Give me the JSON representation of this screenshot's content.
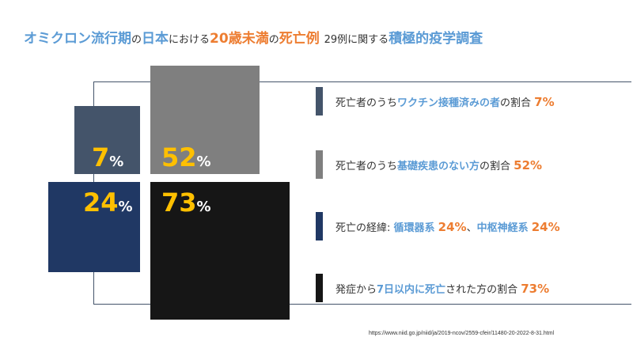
{
  "title": {
    "part1": "オミクロン流行期",
    "part2": "の",
    "part3": "日本",
    "part4": "における",
    "part5": "20歳未満",
    "part6": "の",
    "part7": "死亡例",
    "part8": "29例に関する",
    "part9": "積極的疫学調査"
  },
  "colors": {
    "accent_blue": "#5b9bd5",
    "accent_orange": "#ed7d31",
    "pct_yellow": "#ffc000",
    "square_vaccinated": "#44546a",
    "square_no_underlying": "#7f7f7f",
    "square_course": "#203864",
    "square_within7days": "#161616"
  },
  "squares": [
    {
      "value": "7",
      "unit": "%"
    },
    {
      "value": "52",
      "unit": "%"
    },
    {
      "value": "24",
      "unit": "%"
    },
    {
      "value": "73",
      "unit": "%"
    }
  ],
  "legend": [
    {
      "text1": "死亡者のうち",
      "highlight": "ワクチン接種済みの者",
      "text2": "の割合 ",
      "num": "7%"
    },
    {
      "text1": "死亡者のうち",
      "highlight": "基礎疾患のない方",
      "text2": "の割合 ",
      "num": "52%"
    },
    {
      "text1": "死亡の経緯: ",
      "highlight": "循環器系",
      "num": "24%",
      "sep": "、",
      "highlight2": "中枢神経系",
      "num2": "24%"
    },
    {
      "text1": "発症から",
      "highlight": "7日以内に死亡",
      "text2": "された方の割合 ",
      "num": "73%"
    }
  ],
  "source": "https://www.niid.go.jp/niid/ja/2019-ncov/2559-cfeir/11480-20-2022-8-31.html"
}
